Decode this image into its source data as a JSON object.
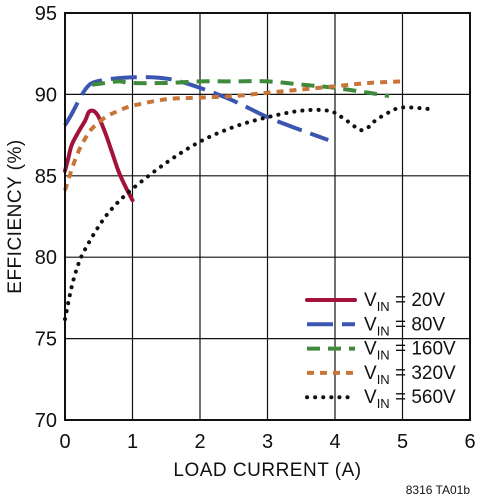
{
  "chart_data": {
    "type": "line",
    "xlabel": "LOAD CURRENT (A)",
    "ylabel": "EFFICIENCY (%)",
    "xlim": [
      0,
      6
    ],
    "ylim": [
      70,
      95
    ],
    "xticks": [
      "0",
      "1",
      "2",
      "3",
      "4",
      "5",
      "6"
    ],
    "yticks": [
      "70",
      "75",
      "80",
      "85",
      "90",
      "95"
    ],
    "grid": true,
    "legend_position": "bottom-right",
    "footnote": "8316 TA01b",
    "series": [
      {
        "name": "V_IN = 20V",
        "legend_main": "V",
        "legend_sub": "IN",
        "legend_rest": " = 20V",
        "color": "#a3123a",
        "style": "solid",
        "x": [
          0,
          0.05,
          0.1,
          0.2,
          0.3,
          0.35,
          0.4,
          0.45,
          0.5,
          0.6,
          0.7,
          0.8,
          0.9,
          1.0
        ],
        "y": [
          85.3,
          86.1,
          86.9,
          87.7,
          88.4,
          88.9,
          89.0,
          88.9,
          88.6,
          87.6,
          86.4,
          85.2,
          84.3,
          83.5
        ]
      },
      {
        "name": "V_IN = 80V",
        "legend_main": "V",
        "legend_sub": "IN",
        "legend_rest": " = 80V",
        "color": "#3a56b0",
        "style": "longdash",
        "x": [
          0,
          0.1,
          0.2,
          0.3,
          0.4,
          0.6,
          0.8,
          1.0,
          1.3,
          1.6,
          2.0,
          2.5,
          3.0,
          3.5,
          3.9
        ],
        "y": [
          88.1,
          88.8,
          89.6,
          90.3,
          90.7,
          90.9,
          91.0,
          91.05,
          91.05,
          90.9,
          90.4,
          89.6,
          88.6,
          87.8,
          87.2
        ]
      },
      {
        "name": "V_IN = 160V",
        "legend_main": "V",
        "legend_sub": "IN",
        "legend_rest": " = 160V",
        "color": "#3f8a3c",
        "style": "dash",
        "x": [
          0.4,
          0.6,
          0.8,
          1.0,
          1.5,
          2.0,
          2.5,
          3.0,
          3.5,
          4.0,
          4.5,
          4.8
        ],
        "y": [
          90.6,
          90.7,
          90.8,
          90.7,
          90.7,
          90.8,
          90.8,
          90.8,
          90.6,
          90.4,
          90.1,
          89.9
        ]
      },
      {
        "name": "V_IN = 320V",
        "legend_main": "V",
        "legend_sub": "IN",
        "legend_rest": " = 320V",
        "color": "#c8753a",
        "style": "shortdash",
        "x": [
          0,
          0.1,
          0.2,
          0.3,
          0.4,
          0.6,
          0.8,
          1.0,
          1.5,
          2.0,
          2.5,
          3.0,
          3.5,
          4.0,
          4.5,
          5.0
        ],
        "y": [
          84.1,
          85.4,
          86.5,
          87.3,
          87.9,
          88.6,
          89.0,
          89.3,
          89.7,
          89.8,
          89.9,
          90.1,
          90.3,
          90.5,
          90.7,
          90.8
        ]
      },
      {
        "name": "V_IN = 560V",
        "legend_main": "V",
        "legend_sub": "IN",
        "legend_rest": " = 560V",
        "color": "#111111",
        "style": "dotted",
        "x": [
          0,
          0.1,
          0.2,
          0.3,
          0.5,
          0.7,
          1.0,
          1.5,
          2.0,
          2.5,
          3.0,
          3.5,
          3.9,
          4.1,
          4.3,
          4.4,
          4.5,
          4.6,
          4.8,
          5.0,
          5.4
        ],
        "y": [
          76.2,
          78.2,
          79.6,
          80.5,
          81.9,
          83.0,
          84.2,
          85.8,
          87.1,
          88.0,
          88.6,
          89.0,
          89.0,
          88.6,
          88.0,
          87.8,
          88.0,
          88.4,
          88.9,
          89.2,
          89.1
        ]
      }
    ]
  }
}
